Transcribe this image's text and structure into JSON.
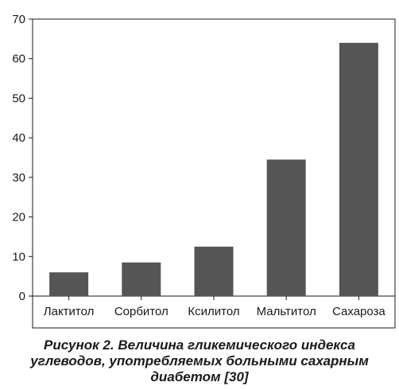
{
  "chart_data": {
    "type": "bar",
    "categories": [
      "Лактитол",
      "Сорбитол",
      "Ксилитол",
      "Мальтитол",
      "Сахароза"
    ],
    "values": [
      6,
      8.5,
      12.5,
      34.5,
      64
    ],
    "ylim": [
      0,
      70
    ],
    "yticks": [
      "0",
      "10",
      "20",
      "30",
      "40",
      "50",
      "60",
      "70"
    ],
    "grid": false,
    "bar_color": "#555555",
    "title": "",
    "xlabel": "",
    "ylabel": ""
  },
  "caption": {
    "line1": "Рисунок 2.  Величина гликемического индекса",
    "line2": "углеводов, употребляемых больными сахарным",
    "line3": "диабетом [30]"
  }
}
